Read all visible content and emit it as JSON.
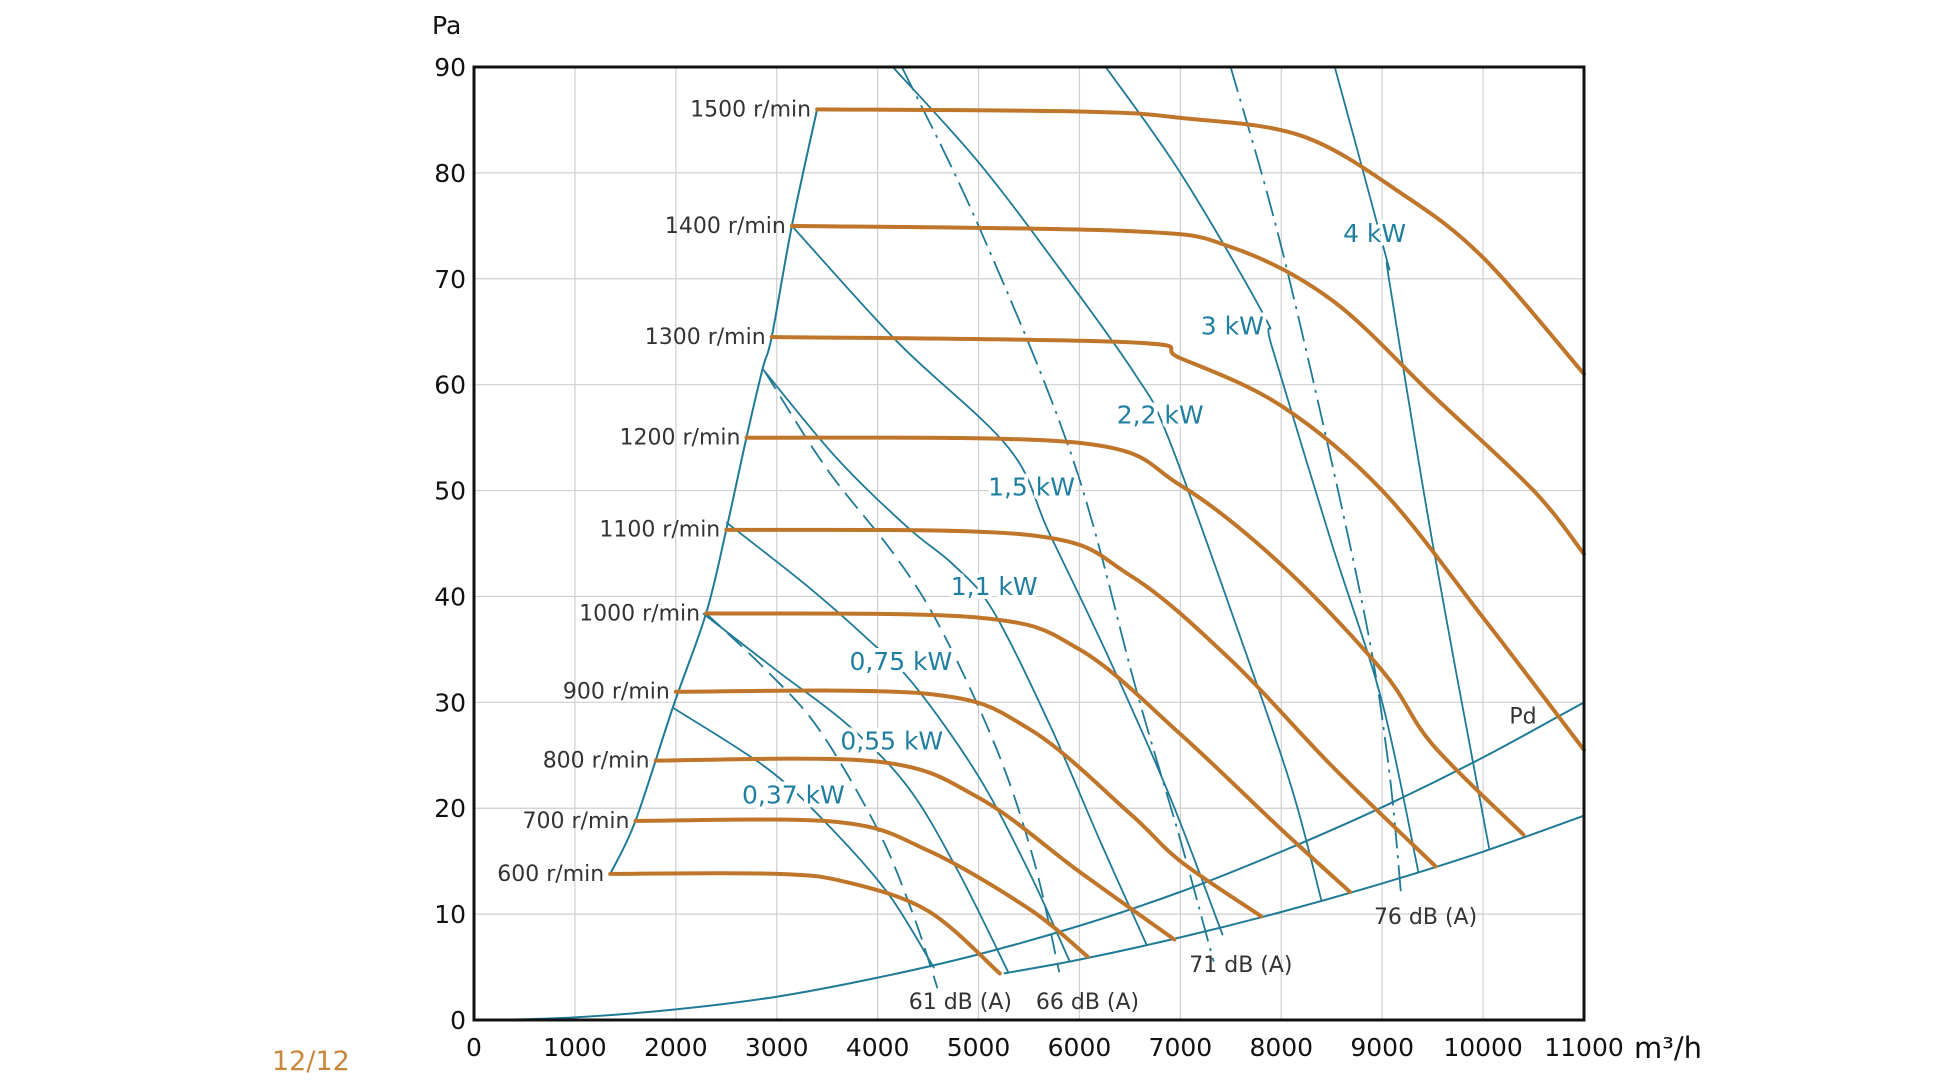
{
  "page_number": "12/12",
  "colors": {
    "speed_curve": "#c0762a",
    "power_line": "#1f7a96",
    "grid": "#cfcfcf",
    "label_blue": "#1f7fa0",
    "page_number": "#c8873a"
  },
  "chart_data": {
    "type": "line",
    "title": "",
    "xlabel": "m³/h",
    "ylabel": "Pa",
    "xlim": [
      0,
      11000
    ],
    "ylim": [
      0,
      90
    ],
    "grid": true,
    "x_ticks": [
      "0",
      "1000",
      "2000",
      "3000",
      "4000",
      "5000",
      "6000",
      "7000",
      "8000",
      "9000",
      "10000",
      "11000"
    ],
    "y_ticks": [
      "0",
      "10",
      "20",
      "30",
      "40",
      "50",
      "60",
      "70",
      "80",
      "90"
    ],
    "speed_curves": [
      {
        "name": "600 r/min",
        "points": [
          [
            1350,
            13.8
          ],
          [
            3000,
            13.8
          ],
          [
            3700,
            13
          ],
          [
            4500,
            10.3
          ],
          [
            5210,
            4.4
          ]
        ]
      },
      {
        "name": "700 r/min",
        "points": [
          [
            1600,
            18.8
          ],
          [
            3600,
            18.7
          ],
          [
            4500,
            16
          ],
          [
            5500,
            10.5
          ],
          [
            6080,
            6
          ]
        ]
      },
      {
        "name": "800 r/min",
        "points": [
          [
            1800,
            24.5
          ],
          [
            4000,
            24.4
          ],
          [
            5000,
            21
          ],
          [
            6000,
            14
          ],
          [
            6940,
            7.6
          ]
        ]
      },
      {
        "name": "900 r/min",
        "points": [
          [
            2000,
            31
          ],
          [
            4500,
            30.8
          ],
          [
            5500,
            27.5
          ],
          [
            6500,
            19.5
          ],
          [
            7000,
            15
          ],
          [
            7800,
            9.8
          ]
        ]
      },
      {
        "name": "1000 r/min",
        "points": [
          [
            2300,
            38.4
          ],
          [
            5000,
            38
          ],
          [
            6000,
            35
          ],
          [
            7000,
            27
          ],
          [
            8000,
            18
          ],
          [
            8680,
            12.1
          ]
        ]
      },
      {
        "name": "1100 r/min",
        "points": [
          [
            2500,
            46.3
          ],
          [
            5500,
            45.8
          ],
          [
            6500,
            42
          ],
          [
            7500,
            34
          ],
          [
            8500,
            24
          ],
          [
            9530,
            14.5
          ]
        ]
      },
      {
        "name": "1200 r/min",
        "points": [
          [
            2700,
            55
          ],
          [
            6000,
            54.5
          ],
          [
            7000,
            50.5
          ],
          [
            8000,
            43
          ],
          [
            9000,
            33
          ],
          [
            9500,
            26
          ],
          [
            10400,
            17.5
          ]
        ]
      },
      {
        "name": "1300 r/min",
        "points": [
          [
            2950,
            64.5
          ],
          [
            6500,
            64
          ],
          [
            7000,
            62.5
          ],
          [
            8000,
            58
          ],
          [
            9000,
            50
          ],
          [
            10000,
            38
          ],
          [
            11000,
            25.5
          ]
        ]
      },
      {
        "name": "1400 r/min",
        "points": [
          [
            3150,
            75
          ],
          [
            6500,
            74.5
          ],
          [
            7500,
            73
          ],
          [
            8500,
            68
          ],
          [
            9500,
            59
          ],
          [
            10500,
            50
          ],
          [
            11000,
            44
          ]
        ]
      },
      {
        "name": "1500 r/min",
        "points": [
          [
            3400,
            86
          ],
          [
            6000,
            85.8
          ],
          [
            7000,
            85.2
          ],
          [
            8200,
            83.5
          ],
          [
            9200,
            78
          ],
          [
            10000,
            72
          ],
          [
            11000,
            61
          ]
        ]
      }
    ],
    "power_lines": [
      {
        "name": "0,37 kW",
        "label_at": [
          3165,
          21.3
        ],
        "points": [
          [
            1970,
            29.5
          ],
          [
            2900,
            23.8
          ],
          [
            3500,
            18.5
          ],
          [
            4100,
            12
          ],
          [
            4560,
            4.9
          ]
        ]
      },
      {
        "name": "0,55 kW",
        "label_at": [
          4140,
          26.4
        ],
        "points": [
          [
            2270,
            38.4
          ],
          [
            3000,
            33
          ],
          [
            3700,
            27.9
          ],
          [
            4300,
            22
          ],
          [
            4800,
            14
          ],
          [
            5300,
            4.4
          ]
        ]
      },
      {
        "name": "0,75 kW",
        "label_at": [
          4230,
          33.9
        ],
        "points": [
          [
            2500,
            47
          ],
          [
            3300,
            41
          ],
          [
            3910,
            35.9
          ],
          [
            4365,
            31.6
          ],
          [
            5000,
            23
          ],
          [
            5500,
            14
          ],
          [
            5900,
            5.6
          ]
        ]
      },
      {
        "name": "1,1 kW",
        "label_at": [
          5155,
          41
        ],
        "points": [
          [
            2860,
            61.5
          ],
          [
            3600,
            53
          ],
          [
            4300,
            46.5
          ],
          [
            4750,
            43
          ],
          [
            5140,
            38.7
          ],
          [
            5700,
            28
          ],
          [
            6200,
            17
          ],
          [
            6670,
            7
          ]
        ]
      },
      {
        "name": "1,5 kW",
        "label_at": [
          5525,
          50.4
        ],
        "points": [
          [
            3150,
            75
          ],
          [
            4200,
            64
          ],
          [
            5300,
            54
          ],
          [
            5700,
            46
          ],
          [
            6300,
            34
          ],
          [
            6900,
            21
          ],
          [
            7420,
            8
          ]
        ]
      },
      {
        "name": "2,2 kW",
        "label_at": [
          6800,
          57.2
        ],
        "points": [
          [
            4150,
            90
          ],
          [
            5000,
            81
          ],
          [
            5800,
            71
          ],
          [
            6550,
            61
          ],
          [
            6880,
            55
          ],
          [
            7600,
            36
          ],
          [
            8100,
            22
          ],
          [
            8400,
            11.2
          ]
        ]
      },
      {
        "name": "3 kW",
        "label_at": [
          7515,
          65.6
        ],
        "points": [
          [
            6260,
            90
          ],
          [
            7000,
            80
          ],
          [
            7830,
            66.5
          ],
          [
            7910,
            63.5
          ],
          [
            8500,
            45
          ],
          [
            9000,
            30
          ],
          [
            9360,
            13.9
          ]
        ]
      },
      {
        "name": "4 kW",
        "label_at": [
          8925,
          74.3
        ],
        "points": [
          [
            8530,
            90
          ],
          [
            9040,
            72
          ],
          [
            9070,
            69.8
          ],
          [
            9500,
            45
          ],
          [
            10060,
            16.2
          ]
        ]
      }
    ],
    "sound_lines": [
      {
        "name": "61 dB (A)",
        "label_at": [
          4820,
          1.8
        ],
        "dash": "dashed",
        "points": [
          [
            2300,
            38.4
          ],
          [
            2900,
            33
          ],
          [
            3415,
            27.5
          ],
          [
            4000,
            18
          ],
          [
            4350,
            10
          ],
          [
            4593,
            3
          ]
        ]
      },
      {
        "name": "66 dB (A)",
        "label_at": [
          6080,
          1.8
        ],
        "dash": "dashed",
        "points": [
          [
            2884,
            61.2
          ],
          [
            3500,
            52
          ],
          [
            4153,
            44.1
          ],
          [
            4618,
            37.1
          ],
          [
            5183,
            25.5
          ],
          [
            5550,
            15
          ],
          [
            5800,
            4.5
          ]
        ]
      },
      {
        "name": "71 dB (A)",
        "label_at": [
          7600,
          5.3
        ],
        "dash": "dash-dot",
        "points": [
          [
            4240,
            90
          ],
          [
            5000,
            75
          ],
          [
            5937,
            52.9
          ],
          [
            6571,
            30.9
          ],
          [
            7000,
            17
          ],
          [
            7330,
            5.5
          ]
        ]
      },
      {
        "name": "76 dB (A)",
        "label_at": [
          9430,
          9.8
        ],
        "dash": "dash-dot",
        "points": [
          [
            7498,
            90
          ],
          [
            8035,
            71.7
          ],
          [
            8778,
            40.5
          ],
          [
            9050,
            25
          ],
          [
            9190,
            11.6
          ]
        ]
      }
    ],
    "speed_boundary": [
      [
        1350,
        13.8
      ],
      [
        1600,
        18.8
      ],
      [
        1970,
        29.5
      ],
      [
        2300,
        38.4
      ],
      [
        2500,
        46.3
      ],
      [
        2700,
        55
      ],
      [
        2860,
        61.5
      ],
      [
        2950,
        64.5
      ],
      [
        3150,
        75
      ],
      [
        3400,
        86
      ]
    ],
    "system_curves": [
      {
        "name": "Pd",
        "label_at": [
          10260,
          28
        ],
        "points": [
          [
            200,
            0
          ],
          [
            1000,
            0.25
          ],
          [
            2000,
            1
          ],
          [
            3000,
            2.2
          ],
          [
            4000,
            4
          ],
          [
            5000,
            6.2
          ],
          [
            6000,
            8.9
          ],
          [
            7000,
            12.1
          ],
          [
            8000,
            15.9
          ],
          [
            9000,
            20.1
          ],
          [
            10000,
            24.8
          ],
          [
            11000,
            30
          ]
        ]
      },
      {
        "name": "",
        "points": [
          [
            5250,
            4.4
          ],
          [
            6000,
            5.7
          ],
          [
            7000,
            7.8
          ],
          [
            8000,
            10.2
          ],
          [
            9000,
            12.9
          ],
          [
            10000,
            15.9
          ],
          [
            11000,
            19.3
          ]
        ]
      }
    ]
  }
}
